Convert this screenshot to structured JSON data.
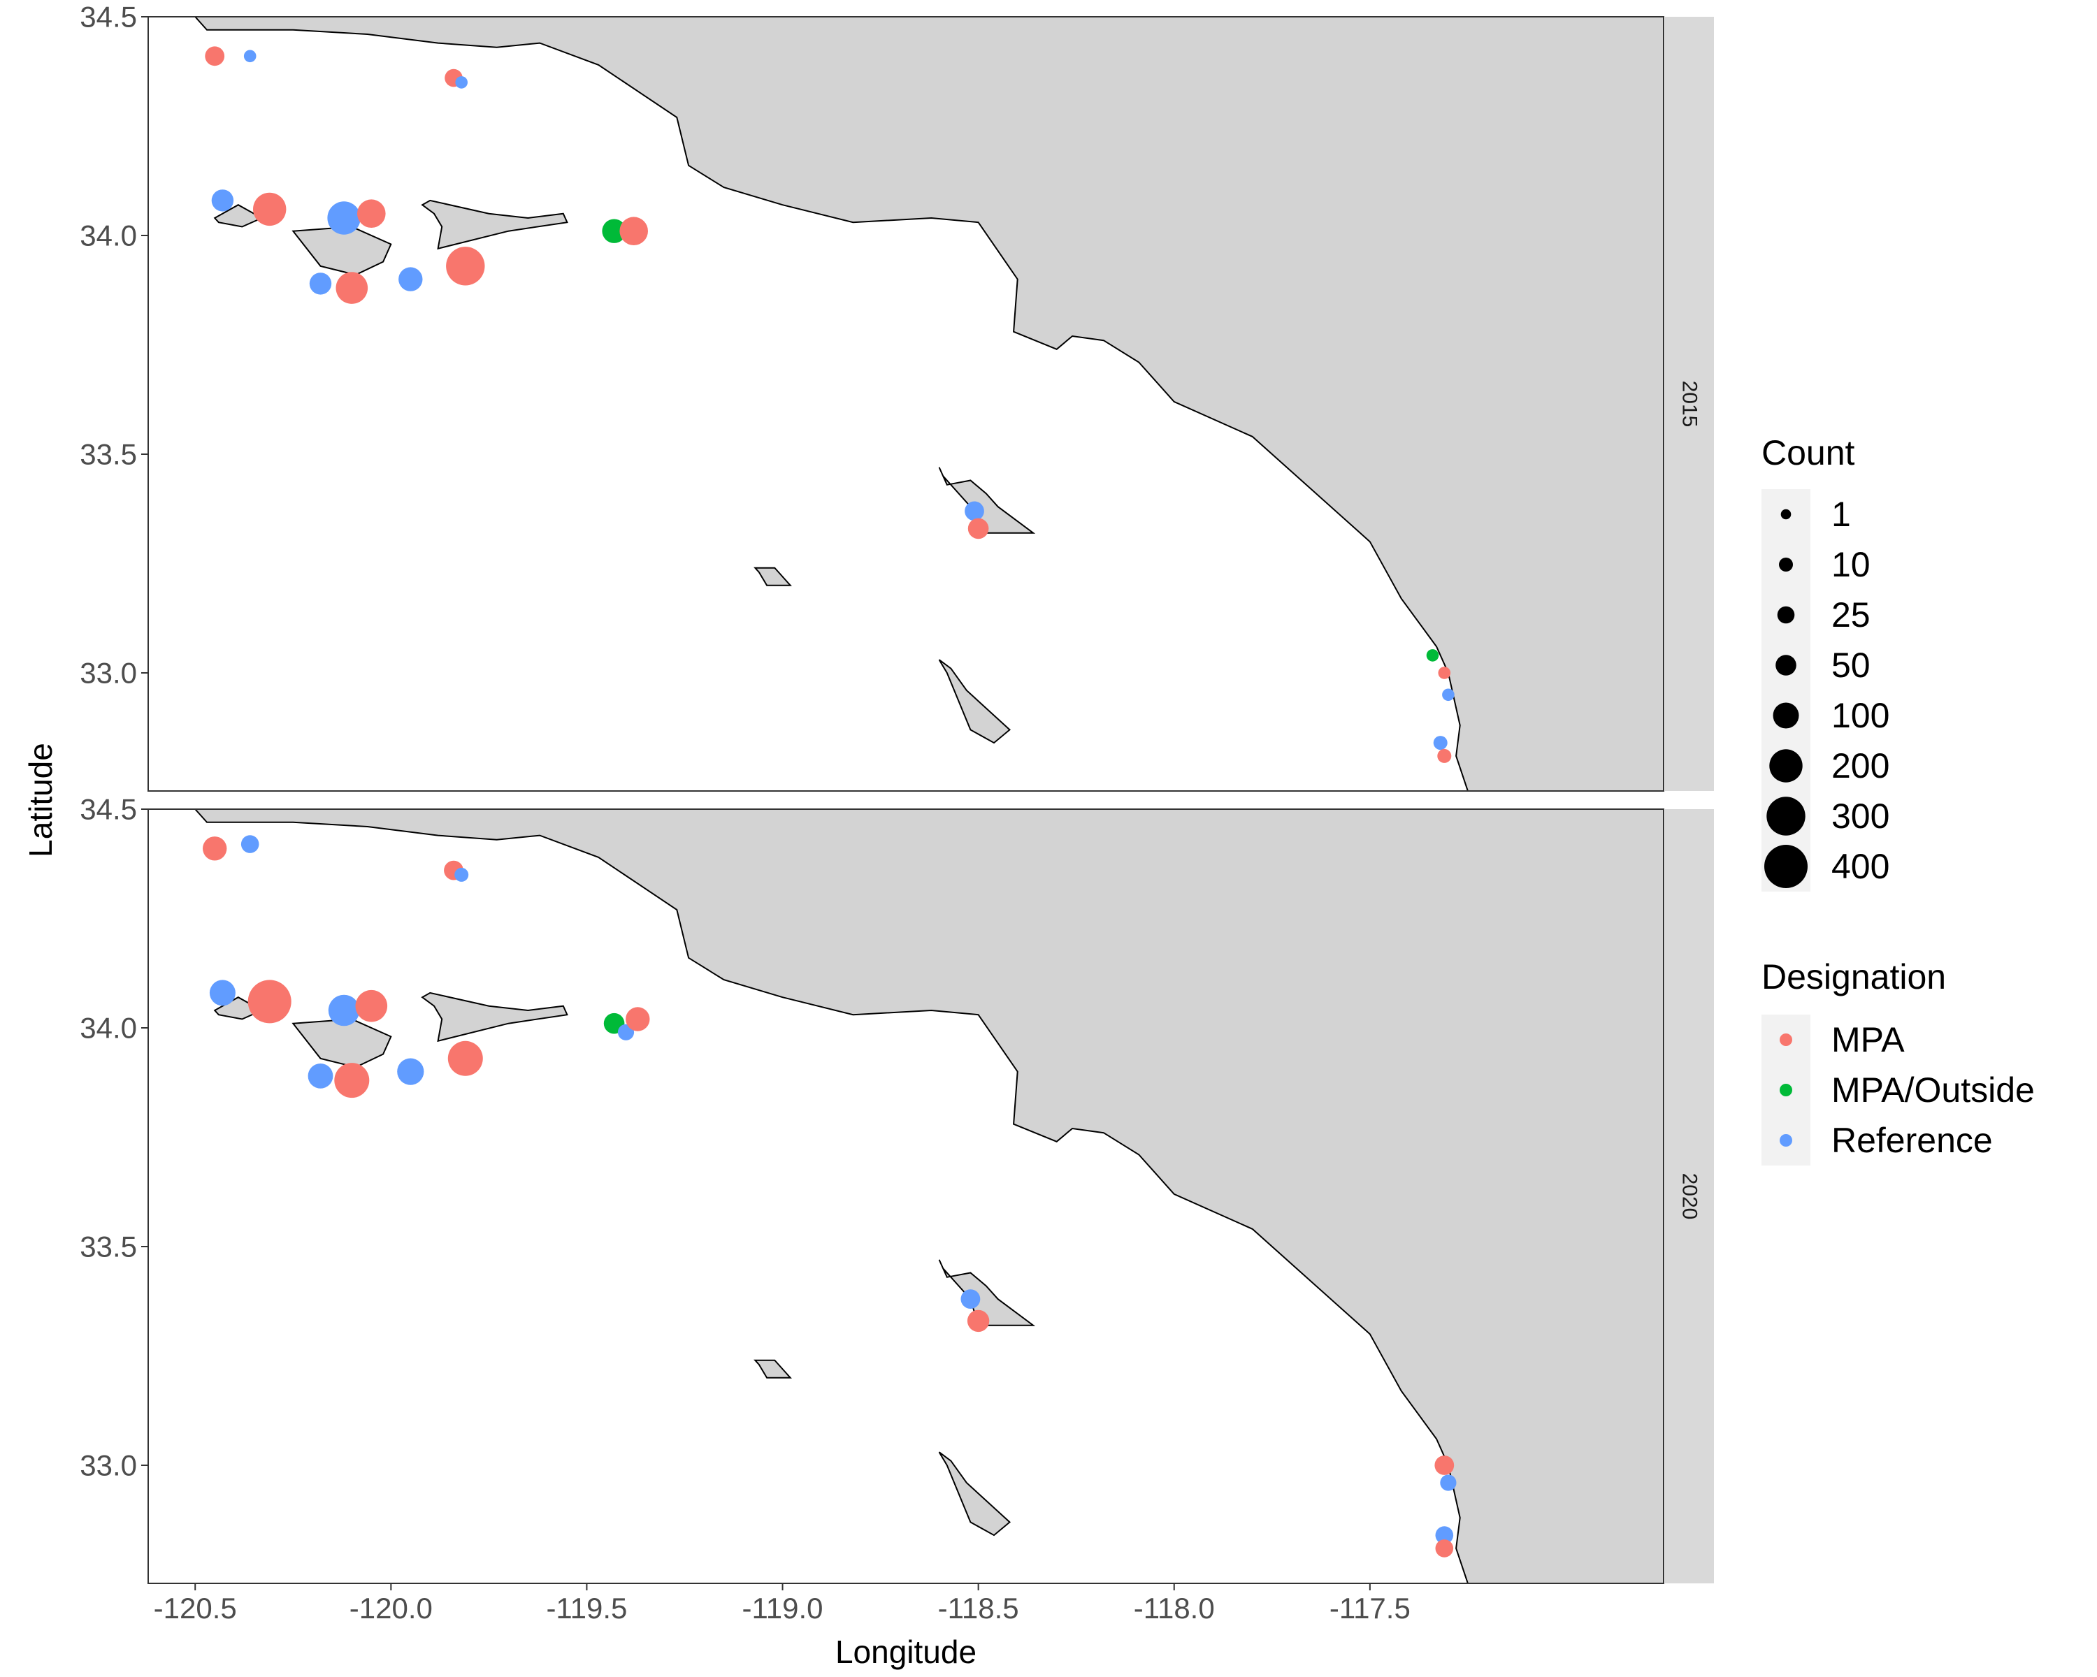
{
  "chart_data": {
    "type": "scatter",
    "xlabel": "Longitude",
    "ylabel": "Latitude",
    "xlim": [
      -120.62,
      -116.75
    ],
    "ylim": [
      32.73,
      34.5
    ],
    "xticks": [
      -120.5,
      -120.0,
      -119.5,
      -119.0,
      -118.5,
      -118.0,
      -117.5
    ],
    "xtick_labels": [
      "-120.5",
      "-120.0",
      "-119.5",
      "-119.0",
      "-118.5",
      "-118.0",
      "-117.5"
    ],
    "yticks": [
      33.0,
      33.5,
      34.0,
      34.5
    ],
    "ytick_labels": [
      "33.0",
      "33.5",
      "34.0",
      "34.5"
    ],
    "grid": false,
    "facet_by": "year",
    "colors": {
      "MPA": "#F8766D",
      "MPA/Outside": "#00BA38",
      "Reference": "#619CFF"
    },
    "land_color": "#D3D3D3",
    "panels": [
      {
        "label": "2015",
        "points": [
          {
            "lon": -120.45,
            "lat": 34.41,
            "designation": "MPA",
            "count": 40
          },
          {
            "lon": -120.36,
            "lat": 34.41,
            "designation": "Reference",
            "count": 5
          },
          {
            "lon": -119.84,
            "lat": 34.36,
            "designation": "MPA",
            "count": 30
          },
          {
            "lon": -119.82,
            "lat": 34.35,
            "designation": "Reference",
            "count": 5
          },
          {
            "lon": -120.43,
            "lat": 34.08,
            "designation": "Reference",
            "count": 60
          },
          {
            "lon": -120.31,
            "lat": 34.06,
            "designation": "MPA",
            "count": 200
          },
          {
            "lon": -120.12,
            "lat": 34.04,
            "designation": "Reference",
            "count": 200
          },
          {
            "lon": -120.05,
            "lat": 34.05,
            "designation": "MPA",
            "count": 130
          },
          {
            "lon": -120.18,
            "lat": 33.89,
            "designation": "Reference",
            "count": 60
          },
          {
            "lon": -120.1,
            "lat": 33.88,
            "designation": "MPA",
            "count": 180
          },
          {
            "lon": -119.95,
            "lat": 33.9,
            "designation": "Reference",
            "count": 80
          },
          {
            "lon": -119.81,
            "lat": 33.93,
            "designation": "MPA",
            "count": 300
          },
          {
            "lon": -119.43,
            "lat": 34.01,
            "designation": "MPA/Outside",
            "count": 80
          },
          {
            "lon": -119.38,
            "lat": 34.01,
            "designation": "MPA",
            "count": 130
          },
          {
            "lon": -118.51,
            "lat": 33.37,
            "designation": "Reference",
            "count": 40
          },
          {
            "lon": -118.5,
            "lat": 33.33,
            "designation": "MPA",
            "count": 50
          },
          {
            "lon": -117.34,
            "lat": 33.04,
            "designation": "MPA/Outside",
            "count": 5
          },
          {
            "lon": -117.31,
            "lat": 33.0,
            "designation": "MPA",
            "count": 5
          },
          {
            "lon": -117.3,
            "lat": 32.95,
            "designation": "Reference",
            "count": 5
          },
          {
            "lon": -117.32,
            "lat": 32.84,
            "designation": "Reference",
            "count": 10
          },
          {
            "lon": -117.31,
            "lat": 32.81,
            "designation": "MPA",
            "count": 10
          }
        ]
      },
      {
        "label": "2020",
        "points": [
          {
            "lon": -120.45,
            "lat": 34.41,
            "designation": "MPA",
            "count": 80
          },
          {
            "lon": -120.36,
            "lat": 34.42,
            "designation": "Reference",
            "count": 30
          },
          {
            "lon": -119.84,
            "lat": 34.36,
            "designation": "MPA",
            "count": 40
          },
          {
            "lon": -119.82,
            "lat": 34.35,
            "designation": "Reference",
            "count": 10
          },
          {
            "lon": -120.43,
            "lat": 34.08,
            "designation": "Reference",
            "count": 100
          },
          {
            "lon": -120.31,
            "lat": 34.06,
            "designation": "MPA",
            "count": 400
          },
          {
            "lon": -120.12,
            "lat": 34.04,
            "designation": "Reference",
            "count": 170
          },
          {
            "lon": -120.05,
            "lat": 34.05,
            "designation": "MPA",
            "count": 180
          },
          {
            "lon": -120.18,
            "lat": 33.89,
            "designation": "Reference",
            "count": 90
          },
          {
            "lon": -120.1,
            "lat": 33.88,
            "designation": "MPA",
            "count": 230
          },
          {
            "lon": -119.95,
            "lat": 33.9,
            "designation": "Reference",
            "count": 110
          },
          {
            "lon": -119.81,
            "lat": 33.93,
            "designation": "MPA",
            "count": 230
          },
          {
            "lon": -119.43,
            "lat": 34.01,
            "designation": "MPA/Outside",
            "count": 50
          },
          {
            "lon": -119.4,
            "lat": 33.99,
            "designation": "Reference",
            "count": 20
          },
          {
            "lon": -119.37,
            "lat": 34.02,
            "designation": "MPA",
            "count": 80
          },
          {
            "lon": -118.52,
            "lat": 33.38,
            "designation": "Reference",
            "count": 40
          },
          {
            "lon": -118.5,
            "lat": 33.33,
            "designation": "MPA",
            "count": 60
          },
          {
            "lon": -117.31,
            "lat": 33.0,
            "designation": "MPA",
            "count": 40
          },
          {
            "lon": -117.3,
            "lat": 32.96,
            "designation": "Reference",
            "count": 20
          },
          {
            "lon": -117.31,
            "lat": 32.84,
            "designation": "Reference",
            "count": 30
          },
          {
            "lon": -117.31,
            "lat": 32.81,
            "designation": "MPA",
            "count": 30
          }
        ]
      }
    ],
    "legend": {
      "placement": "right",
      "size_title": "Count",
      "size_entries": [
        {
          "label": "1",
          "value": 1
        },
        {
          "label": "10",
          "value": 10
        },
        {
          "label": "25",
          "value": 25
        },
        {
          "label": "50",
          "value": 50
        },
        {
          "label": "100",
          "value": 100
        },
        {
          "label": "200",
          "value": 200
        },
        {
          "label": "300",
          "value": 300
        },
        {
          "label": "400",
          "value": 400
        }
      ],
      "color_title": "Designation",
      "color_entries": [
        {
          "label": "MPA",
          "key": "MPA"
        },
        {
          "label": "MPA/Outside",
          "key": "MPA/Outside"
        },
        {
          "label": "Reference",
          "key": "Reference"
        }
      ]
    }
  }
}
